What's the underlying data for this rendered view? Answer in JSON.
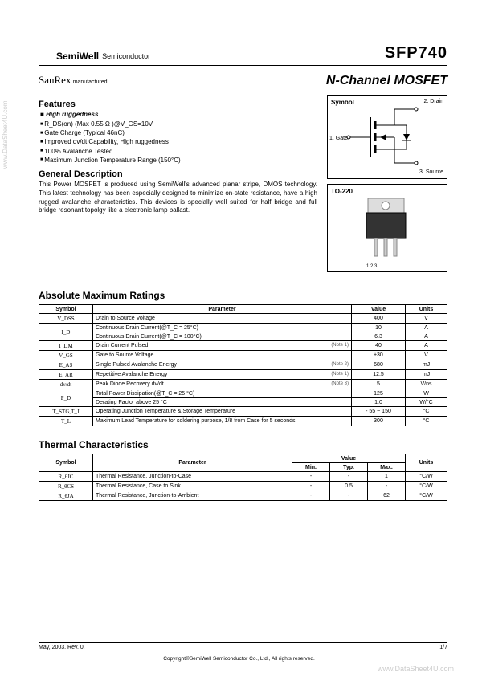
{
  "watermark_side": "www.DataSheet4U.com",
  "header": {
    "brand1": "SemiWell",
    "brand2": "Semiconductor",
    "part": "SFP740",
    "sanrex": "SanRex",
    "sanrex_sub": "manufactured",
    "device": "N-Channel MOSFET"
  },
  "features": {
    "title": "Features",
    "high": "High ruggedness",
    "items": [
      "R_DS(on) (Max 0.55 Ω )@V_GS=10V",
      "Gate Charge (Typical 46nC)",
      "Improved dv/dt Capability, High ruggedness",
      "100% Avalanche Tested",
      "Maximum Junction Temperature Range (150°C)"
    ]
  },
  "general": {
    "title": "General Description",
    "text": "This Power MOSFET is produced using SemiWell's advanced planar stripe, DMOS technology. This latest technology has been especially designed to minimize on-state resistance, have a high rugged avalanche characteristics. This devices is specially well suited for half bridge and full bridge resonant topolgy like a electronic lamp ballast."
  },
  "symbol_box": {
    "label": "Symbol",
    "pin_gate": "1. Gate",
    "pin_drain": "2. Drain",
    "pin_source": "3. Source"
  },
  "package_box": {
    "label": "TO-220",
    "pins": "1 2 3"
  },
  "abs_max": {
    "title": "Absolute Maximum Ratings",
    "headers": {
      "sym": "Symbol",
      "param": "Parameter",
      "val": "Value",
      "unit": "Units"
    },
    "rows": [
      {
        "sym": "V_DSS",
        "param": "Drain to Source Voltage",
        "note": "",
        "val": "400",
        "unit": "V"
      },
      {
        "sym": "I_D",
        "param": "Continuous Drain Current(@T_C = 25°C)",
        "note": "",
        "val": "10",
        "unit": "A",
        "rowspan_sym": 2
      },
      {
        "sym": "",
        "param": "Continuous Drain Current(@T_C = 100°C)",
        "note": "",
        "val": "6.3",
        "unit": "A"
      },
      {
        "sym": "I_DM",
        "param": "Drain Current Pulsed",
        "note": "(Note 1)",
        "val": "40",
        "unit": "A"
      },
      {
        "sym": "V_GS",
        "param": "Gate to Source Voltage",
        "note": "",
        "val": "±30",
        "unit": "V"
      },
      {
        "sym": "E_AS",
        "param": "Single Pulsed Avalanche Energy",
        "note": "(Note 2)",
        "val": "680",
        "unit": "mJ"
      },
      {
        "sym": "E_AR",
        "param": "Repetitive Avalanche Energy",
        "note": "(Note 1)",
        "val": "12.5",
        "unit": "mJ"
      },
      {
        "sym": "dv/dt",
        "param": "Peak Diode Recovery dv/dt",
        "note": "(Note 3)",
        "val": "5",
        "unit": "V/ns"
      },
      {
        "sym": "P_D",
        "param": "Total Power Dissipation(@T_C = 25 °C)",
        "note": "",
        "val": "125",
        "unit": "W",
        "rowspan_sym": 2
      },
      {
        "sym": "",
        "param": "Derating Factor above 25 °C",
        "note": "",
        "val": "1.0",
        "unit": "W/°C"
      },
      {
        "sym": "T_STG,T_J",
        "param": "Operating Junction Temperature & Storage Temperature",
        "note": "",
        "val": "- 55 ~ 150",
        "unit": "°C"
      },
      {
        "sym": "T_L",
        "param": "Maximum Lead Temperature for soldering purpose,\n1/8 from Case for 5 seconds.",
        "note": "",
        "val": "300",
        "unit": "°C"
      }
    ]
  },
  "thermal": {
    "title": "Thermal Characteristics",
    "headers": {
      "sym": "Symbol",
      "param": "Parameter",
      "val": "Value",
      "min": "Min.",
      "typ": "Typ.",
      "max": "Max.",
      "unit": "Units"
    },
    "rows": [
      {
        "sym": "R_θJC",
        "param": "Thermal Resistance, Junction-to-Case",
        "min": "-",
        "typ": "-",
        "max": "1",
        "unit": "°C/W"
      },
      {
        "sym": "R_θCS",
        "param": "Thermal Resistance, Case to Sink",
        "min": "-",
        "typ": "0.5",
        "max": "-",
        "unit": "°C/W"
      },
      {
        "sym": "R_θJA",
        "param": "Thermal Resistance, Junction-to-Ambient",
        "min": "-",
        "typ": "-",
        "max": "62",
        "unit": "°C/W"
      }
    ]
  },
  "footer": {
    "date": "May,  2003. Rev. 0.",
    "page": "1/7",
    "copyright": "Copyright©SemiWell Semiconductor Co., Ltd., All rights reserved."
  },
  "watermark_bottom": "www.DataSheet4U.com"
}
